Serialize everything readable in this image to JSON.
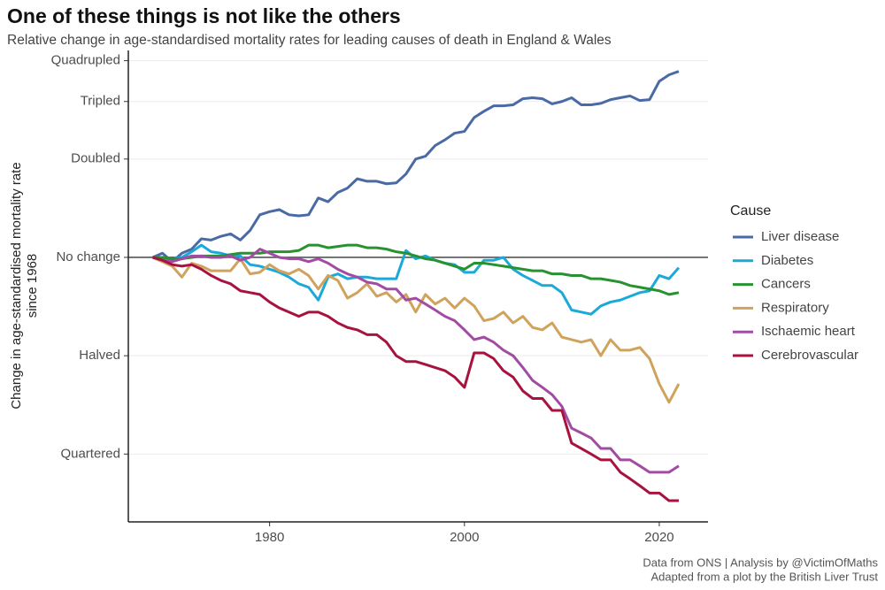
{
  "chart_data": {
    "type": "line",
    "title": "One of these things is not like the others",
    "subtitle": "Relative change in age-standardised mortality rates for leading causes of death in England & Wales",
    "y_label": [
      "Change in age-standardised mortality rate",
      "since 1968"
    ],
    "legend_title": "Cause",
    "caption": [
      "Data from ONS | Analysis by @VictimOfMaths",
      "Adapted from a plot by the British Liver Trust"
    ],
    "log_y": true,
    "grid": true,
    "legend": "right",
    "xlim": [
      1965.5,
      2025
    ],
    "xticks": [
      1980,
      2000,
      2020
    ],
    "ylim": [
      0.155,
      4.3
    ],
    "yticks": [
      {
        "value": 0.25,
        "label": "Quartered"
      },
      {
        "value": 0.5,
        "label": "Halved"
      },
      {
        "value": 1,
        "label": "No change"
      },
      {
        "value": 2,
        "label": "Doubled"
      },
      {
        "value": 3,
        "label": "Tripled"
      },
      {
        "value": 4,
        "label": "Quadrupled"
      }
    ],
    "x": [
      1968,
      1969,
      1970,
      1971,
      1972,
      1973,
      1974,
      1975,
      1976,
      1977,
      1978,
      1979,
      1980,
      1981,
      1982,
      1983,
      1984,
      1985,
      1986,
      1987,
      1988,
      1989,
      1990,
      1991,
      1992,
      1993,
      1994,
      1995,
      1996,
      1997,
      1998,
      1999,
      2000,
      2001,
      2002,
      2003,
      2004,
      2005,
      2006,
      2007,
      2008,
      2009,
      2010,
      2011,
      2012,
      2013,
      2014,
      2015,
      2016,
      2017,
      2018,
      2019,
      2020,
      2021,
      2022
    ],
    "series": [
      {
        "name": "Liver disease",
        "color": "#4a6aa5",
        "values": [
          1.0,
          1.03,
          0.97,
          1.03,
          1.06,
          1.14,
          1.13,
          1.16,
          1.18,
          1.13,
          1.21,
          1.35,
          1.38,
          1.4,
          1.35,
          1.34,
          1.35,
          1.52,
          1.48,
          1.58,
          1.63,
          1.74,
          1.71,
          1.71,
          1.68,
          1.69,
          1.8,
          2.0,
          2.04,
          2.2,
          2.29,
          2.4,
          2.43,
          2.68,
          2.8,
          2.91,
          2.91,
          2.93,
          3.06,
          3.08,
          3.06,
          2.95,
          3.0,
          3.08,
          2.93,
          2.93,
          2.96,
          3.04,
          3.08,
          3.12,
          3.02,
          3.04,
          3.46,
          3.62,
          3.71
        ]
      },
      {
        "name": "Diabetes",
        "color": "#1ba9d9",
        "values": [
          1.0,
          0.99,
          0.99,
          1.0,
          1.04,
          1.09,
          1.04,
          1.03,
          1.01,
          1.01,
          0.95,
          0.94,
          0.92,
          0.9,
          0.87,
          0.83,
          0.81,
          0.74,
          0.87,
          0.89,
          0.86,
          0.87,
          0.87,
          0.86,
          0.86,
          0.86,
          1.05,
          0.99,
          1.01,
          0.98,
          0.96,
          0.95,
          0.9,
          0.9,
          0.98,
          0.98,
          1.0,
          0.92,
          0.88,
          0.85,
          0.82,
          0.82,
          0.78,
          0.69,
          0.68,
          0.67,
          0.71,
          0.73,
          0.74,
          0.76,
          0.78,
          0.79,
          0.88,
          0.86,
          0.93
        ]
      },
      {
        "name": "Cancers",
        "color": "#27922f",
        "values": [
          1.0,
          1.0,
          0.99,
          0.99,
          1.0,
          1.01,
          1.01,
          1.01,
          1.02,
          1.03,
          1.03,
          1.03,
          1.04,
          1.04,
          1.04,
          1.05,
          1.09,
          1.09,
          1.07,
          1.08,
          1.09,
          1.09,
          1.07,
          1.07,
          1.06,
          1.04,
          1.03,
          1.01,
          0.99,
          0.98,
          0.96,
          0.94,
          0.92,
          0.96,
          0.96,
          0.95,
          0.94,
          0.93,
          0.92,
          0.91,
          0.91,
          0.89,
          0.89,
          0.88,
          0.88,
          0.86,
          0.86,
          0.85,
          0.84,
          0.82,
          0.81,
          0.8,
          0.79,
          0.77,
          0.78
        ]
      },
      {
        "name": "Respiratory",
        "color": "#d0a35c",
        "values": [
          1.0,
          0.97,
          0.94,
          0.87,
          0.96,
          0.94,
          0.91,
          0.91,
          0.91,
          0.99,
          0.89,
          0.9,
          0.95,
          0.91,
          0.89,
          0.92,
          0.88,
          0.8,
          0.88,
          0.85,
          0.75,
          0.78,
          0.83,
          0.76,
          0.78,
          0.73,
          0.77,
          0.68,
          0.77,
          0.72,
          0.75,
          0.7,
          0.75,
          0.71,
          0.64,
          0.65,
          0.68,
          0.63,
          0.66,
          0.61,
          0.6,
          0.63,
          0.57,
          0.56,
          0.55,
          0.56,
          0.5,
          0.56,
          0.52,
          0.52,
          0.53,
          0.49,
          0.41,
          0.36,
          0.41
        ]
      },
      {
        "name": "Ischaemic heart",
        "color": "#a24ba3",
        "values": [
          1.0,
          0.98,
          0.97,
          0.99,
          1.01,
          1.01,
          1.0,
          1.0,
          1.01,
          0.98,
          1.0,
          1.06,
          1.03,
          1.0,
          0.99,
          0.99,
          0.97,
          0.99,
          0.96,
          0.92,
          0.89,
          0.87,
          0.84,
          0.83,
          0.8,
          0.8,
          0.74,
          0.75,
          0.72,
          0.69,
          0.66,
          0.64,
          0.6,
          0.56,
          0.57,
          0.55,
          0.52,
          0.5,
          0.46,
          0.42,
          0.4,
          0.38,
          0.35,
          0.3,
          0.29,
          0.28,
          0.26,
          0.26,
          0.24,
          0.24,
          0.23,
          0.22,
          0.22,
          0.22,
          0.23
        ]
      },
      {
        "name": "Cerebrovascular",
        "color": "#a8123f",
        "values": [
          1.0,
          0.98,
          0.95,
          0.94,
          0.95,
          0.92,
          0.88,
          0.85,
          0.83,
          0.79,
          0.78,
          0.77,
          0.73,
          0.7,
          0.68,
          0.66,
          0.68,
          0.68,
          0.66,
          0.63,
          0.61,
          0.6,
          0.58,
          0.58,
          0.55,
          0.5,
          0.48,
          0.48,
          0.47,
          0.46,
          0.45,
          0.43,
          0.4,
          0.51,
          0.51,
          0.49,
          0.45,
          0.43,
          0.39,
          0.37,
          0.37,
          0.34,
          0.34,
          0.27,
          0.26,
          0.25,
          0.24,
          0.24,
          0.22,
          0.21,
          0.2,
          0.19,
          0.19,
          0.18,
          0.18
        ]
      }
    ]
  }
}
